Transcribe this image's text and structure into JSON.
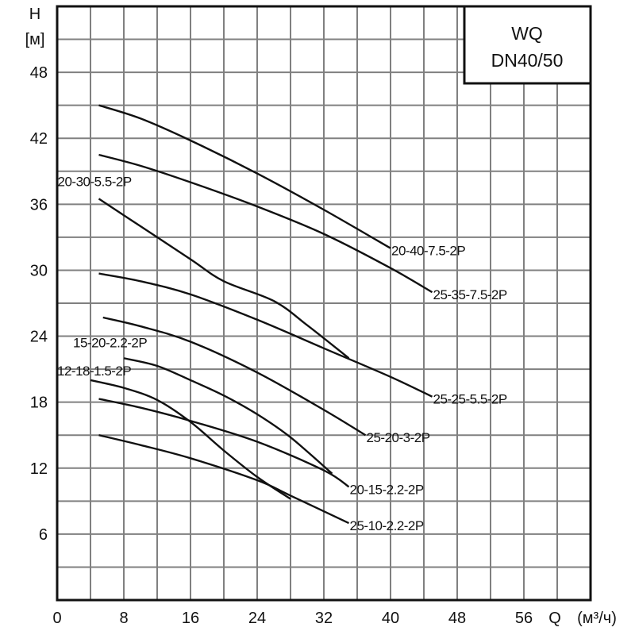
{
  "chart_data": {
    "type": "line",
    "title": "",
    "legend_box": {
      "line1": "WQ",
      "line2": "DN40/50",
      "placement": "top-right"
    },
    "ylabel": {
      "symbol": "H",
      "unit": "[м]"
    },
    "xlabel": {
      "symbol": "Q",
      "unit": "(м³/ч)"
    },
    "xlim": [
      0,
      64
    ],
    "ylim": [
      0,
      54
    ],
    "x_ticks": [
      0,
      8,
      16,
      24,
      32,
      40,
      48,
      56
    ],
    "y_ticks": [
      6,
      12,
      18,
      24,
      30,
      36,
      42,
      48
    ],
    "grid": true,
    "grid_step": {
      "x": 4,
      "y": 3
    },
    "line_color": "#111111",
    "grid_color": "#808080",
    "series": [
      {
        "name": "20-40-7.5-2P",
        "x": [
          5,
          10,
          16,
          24,
          32,
          40
        ],
        "y": [
          45,
          43.8,
          41.8,
          38.8,
          35.5,
          32
        ]
      },
      {
        "name": "25-35-7.5-2P",
        "x": [
          5,
          10,
          16,
          24,
          32,
          40,
          45
        ],
        "y": [
          40.5,
          39.5,
          38,
          35.8,
          33.3,
          30.2,
          28
        ]
      },
      {
        "name": "20-30-5.5-2P",
        "x": [
          5,
          10,
          16,
          20,
          26,
          30,
          35
        ],
        "y": [
          36.5,
          34,
          31,
          29,
          27.2,
          25,
          22
        ]
      },
      {
        "name": "25-25-5.5-2P",
        "x": [
          5,
          10,
          16,
          24,
          32,
          40,
          45
        ],
        "y": [
          29.7,
          29,
          27.8,
          25.5,
          22.9,
          20.3,
          18.5
        ]
      },
      {
        "name": "25-20-3-2P",
        "x": [
          5.5,
          10,
          16,
          24,
          32,
          37
        ],
        "y": [
          25.7,
          24.9,
          23.5,
          20.7,
          17.3,
          15
        ]
      },
      {
        "name": "15-20-2.2-2P",
        "x": [
          8,
          12,
          16,
          20,
          24,
          28,
          33
        ],
        "y": [
          22,
          21.3,
          20,
          18.6,
          16.9,
          14.8,
          11.5
        ]
      },
      {
        "name": "12-18-1.5-2P",
        "x": [
          4,
          8,
          12,
          16,
          20,
          24,
          28
        ],
        "y": [
          20,
          19.3,
          18.2,
          16.2,
          13.6,
          11.2,
          9.2
        ]
      },
      {
        "name": "20-15-2.2-2P",
        "x": [
          5,
          10,
          16,
          24,
          32,
          35
        ],
        "y": [
          18.3,
          17.5,
          16.3,
          14.4,
          11.8,
          10.3
        ]
      },
      {
        "name": "25-10-2.2-2P",
        "x": [
          5,
          10,
          16,
          24,
          28,
          35
        ],
        "y": [
          15,
          14.1,
          12.9,
          10.9,
          9.5,
          7
        ]
      }
    ]
  }
}
